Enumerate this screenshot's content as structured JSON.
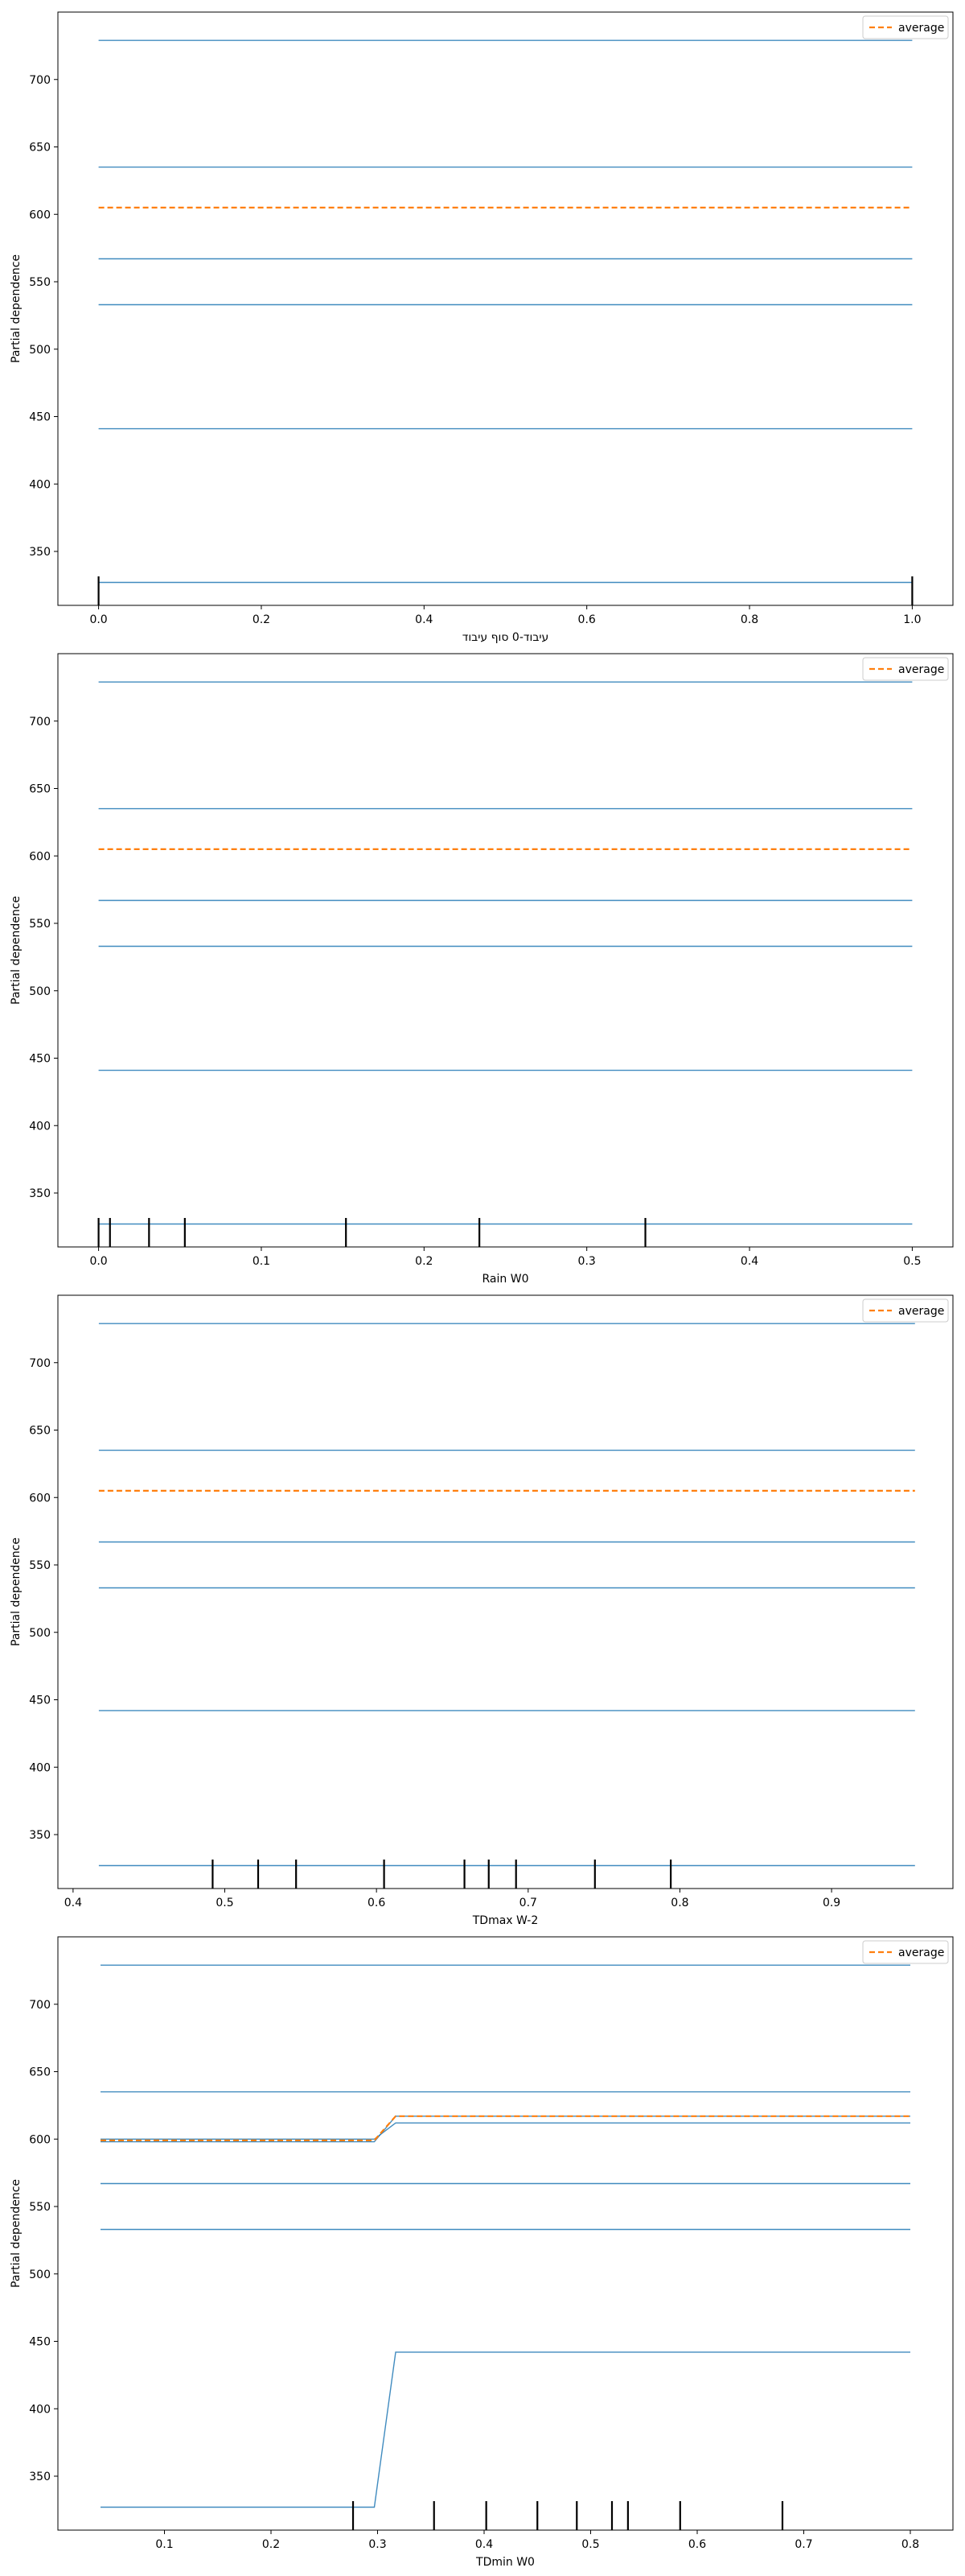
{
  "chart_data": [
    {
      "type": "line",
      "xlabel": "עיבוד-0 סוף עיבוד",
      "ylabel": "Partial dependence",
      "xlim": [
        -0.05,
        1.05
      ],
      "ylim": [
        310,
        750
      ],
      "xticks": [
        0.0,
        0.2,
        0.4,
        0.6,
        0.8,
        1.0
      ],
      "xtick_labels": [
        "0.0",
        "0.2",
        "0.4",
        "0.6",
        "0.8",
        "1.0"
      ],
      "yticks": [
        350,
        400,
        450,
        500,
        550,
        600,
        650,
        700
      ],
      "ytick_labels": [
        "350",
        "400",
        "450",
        "500",
        "550",
        "600",
        "650",
        "700"
      ],
      "legend": {
        "label": "average",
        "placement": "top-right"
      },
      "ice_lines": [
        {
          "x": [
            0.0,
            1.0
          ],
          "y": [
            729,
            729
          ]
        },
        {
          "x": [
            0.0,
            1.0
          ],
          "y": [
            635,
            635
          ]
        },
        {
          "x": [
            0.0,
            1.0
          ],
          "y": [
            567,
            567
          ]
        },
        {
          "x": [
            0.0,
            1.0
          ],
          "y": [
            533,
            533
          ]
        },
        {
          "x": [
            0.0,
            1.0
          ],
          "y": [
            441,
            441
          ]
        },
        {
          "x": [
            0.0,
            1.0
          ],
          "y": [
            327,
            327
          ]
        }
      ],
      "average": {
        "x": [
          0.0,
          1.0
        ],
        "y": [
          605,
          605
        ]
      },
      "rug": [
        0.0,
        1.0
      ]
    },
    {
      "type": "line",
      "xlabel": "Rain W0",
      "ylabel": "Partial dependence",
      "xlim": [
        -0.025,
        0.525
      ],
      "ylim": [
        310,
        750
      ],
      "xticks": [
        0.0,
        0.1,
        0.2,
        0.3,
        0.4,
        0.5
      ],
      "xtick_labels": [
        "0.0",
        "0.1",
        "0.2",
        "0.3",
        "0.4",
        "0.5"
      ],
      "yticks": [
        350,
        400,
        450,
        500,
        550,
        600,
        650,
        700
      ],
      "ytick_labels": [
        "350",
        "400",
        "450",
        "500",
        "550",
        "600",
        "650",
        "700"
      ],
      "legend": {
        "label": "average",
        "placement": "top-right"
      },
      "ice_lines": [
        {
          "x": [
            0.0,
            0.5
          ],
          "y": [
            729,
            729
          ]
        },
        {
          "x": [
            0.0,
            0.5
          ],
          "y": [
            635,
            635
          ]
        },
        {
          "x": [
            0.0,
            0.5
          ],
          "y": [
            567,
            567
          ]
        },
        {
          "x": [
            0.0,
            0.5
          ],
          "y": [
            533,
            533
          ]
        },
        {
          "x": [
            0.0,
            0.5
          ],
          "y": [
            441,
            441
          ]
        },
        {
          "x": [
            0.0,
            0.5
          ],
          "y": [
            327,
            327
          ]
        }
      ],
      "average": {
        "x": [
          0.0,
          0.5
        ],
        "y": [
          605,
          605
        ]
      },
      "rug": [
        0.0,
        0.007,
        0.031,
        0.053,
        0.152,
        0.234,
        0.336
      ]
    },
    {
      "type": "line",
      "xlabel": "TDmax W-2",
      "ylabel": "Partial dependence",
      "xlim": [
        0.39,
        0.98
      ],
      "ylim": [
        310,
        750
      ],
      "xticks": [
        0.4,
        0.5,
        0.6,
        0.7,
        0.8,
        0.9
      ],
      "xtick_labels": [
        "0.4",
        "0.5",
        "0.6",
        "0.7",
        "0.8",
        "0.9"
      ],
      "yticks": [
        350,
        400,
        450,
        500,
        550,
        600,
        650,
        700
      ],
      "ytick_labels": [
        "350",
        "400",
        "450",
        "500",
        "550",
        "600",
        "650",
        "700"
      ],
      "legend": {
        "label": "average",
        "placement": "top-right"
      },
      "ice_lines": [
        {
          "x": [
            0.417,
            0.955
          ],
          "y": [
            729,
            729
          ]
        },
        {
          "x": [
            0.417,
            0.955
          ],
          "y": [
            635,
            635
          ]
        },
        {
          "x": [
            0.417,
            0.955
          ],
          "y": [
            567,
            567
          ]
        },
        {
          "x": [
            0.417,
            0.955
          ],
          "y": [
            533,
            533
          ]
        },
        {
          "x": [
            0.417,
            0.955
          ],
          "y": [
            442,
            442
          ]
        },
        {
          "x": [
            0.417,
            0.955
          ],
          "y": [
            327,
            327
          ]
        }
      ],
      "average": {
        "x": [
          0.417,
          0.955
        ],
        "y": [
          605,
          605
        ]
      },
      "rug": [
        0.492,
        0.522,
        0.547,
        0.605,
        0.658,
        0.674,
        0.692,
        0.744,
        0.794
      ]
    },
    {
      "type": "line",
      "xlabel": "TDmin W0",
      "ylabel": "Partial dependence",
      "xlim": [
        0.0,
        0.84
      ],
      "ylim": [
        310,
        750
      ],
      "xticks": [
        0.1,
        0.2,
        0.3,
        0.4,
        0.5,
        0.6,
        0.7,
        0.8
      ],
      "xtick_labels": [
        "0.1",
        "0.2",
        "0.3",
        "0.4",
        "0.5",
        "0.6",
        "0.7",
        "0.8"
      ],
      "yticks": [
        350,
        400,
        450,
        500,
        550,
        600,
        650,
        700
      ],
      "ytick_labels": [
        "350",
        "400",
        "450",
        "500",
        "550",
        "600",
        "650",
        "700"
      ],
      "legend": {
        "label": "average",
        "placement": "top-right"
      },
      "ice_lines": [
        {
          "x": [
            0.04,
            0.8
          ],
          "y": [
            729,
            729
          ]
        },
        {
          "x": [
            0.04,
            0.8
          ],
          "y": [
            635,
            635
          ]
        },
        {
          "x": [
            0.04,
            0.8
          ],
          "y": [
            567,
            567
          ]
        },
        {
          "x": [
            0.04,
            0.8
          ],
          "y": [
            533,
            533
          ]
        },
        {
          "x": [
            0.04,
            0.297,
            0.317,
            0.8
          ],
          "y": [
            327,
            327,
            442,
            442
          ]
        },
        {
          "x": [
            0.04,
            0.297,
            0.317,
            0.8
          ],
          "y": [
            598,
            598,
            617,
            617
          ]
        },
        {
          "x": [
            0.04,
            0.297,
            0.317,
            0.8
          ],
          "y": [
            600,
            600,
            612,
            612
          ]
        }
      ],
      "average": {
        "x": [
          0.04,
          0.297,
          0.317,
          0.8
        ],
        "y": [
          599,
          599,
          617,
          617
        ]
      },
      "rug": [
        0.277,
        0.353,
        0.402,
        0.45,
        0.487,
        0.52,
        0.535,
        0.584,
        0.68
      ]
    }
  ],
  "colors": {
    "ice_line": "#1f77b4",
    "average_line": "#ff7f0e",
    "rug": "#000000",
    "axes": "#000000",
    "background": "#ffffff"
  }
}
